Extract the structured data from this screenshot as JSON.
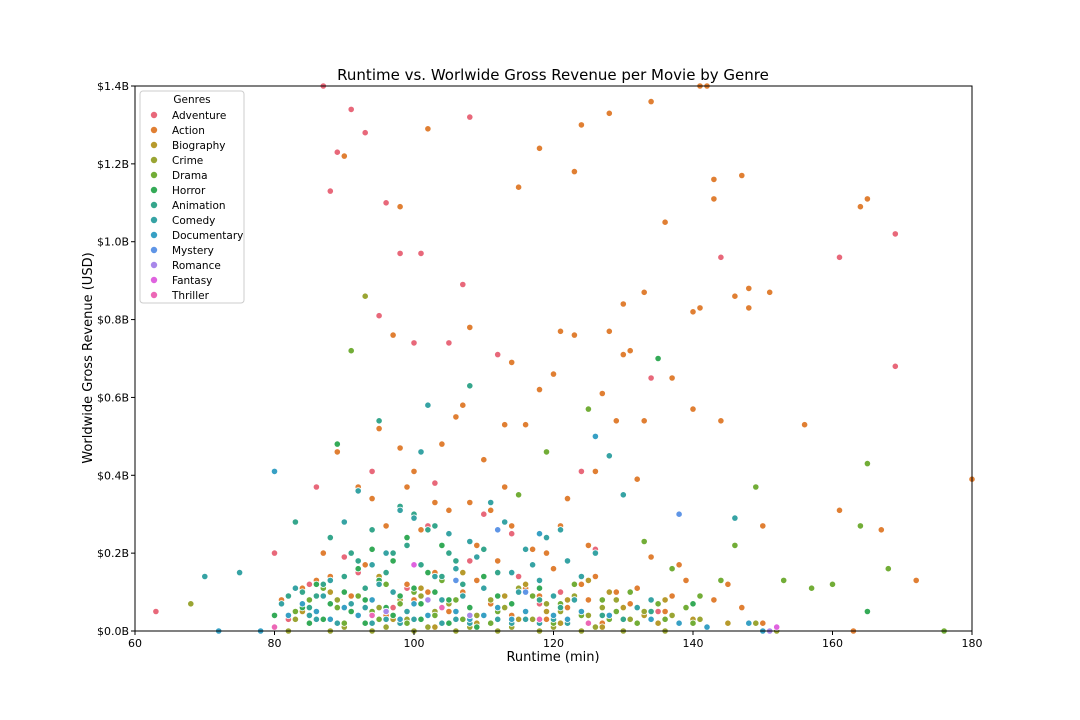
{
  "chart_data": {
    "type": "scatter",
    "title": "Runtime vs. Worlwide Gross Revenue per Movie by Genre",
    "xlabel": "Runtime (min)",
    "ylabel": "Worldwide Gross Revenue (USD)",
    "xlim": [
      60,
      180
    ],
    "ylim": [
      0,
      1.4
    ],
    "x_ticks": [
      60,
      80,
      100,
      120,
      140,
      160,
      180
    ],
    "y_ticks": [
      "$0.0B",
      "$0.2B",
      "$0.4B",
      "$0.6B",
      "$0.8B",
      "$1.0B",
      "$1.2B",
      "$1.4B"
    ],
    "grid": false,
    "legend": {
      "title": "Genres",
      "position": "top-left"
    },
    "series": [
      {
        "name": "Adventure",
        "color": "#e8687a",
        "x": [
          63,
          80,
          86,
          87,
          88,
          89,
          91,
          93,
          94,
          95,
          96,
          98,
          100,
          101,
          102,
          103,
          105,
          106,
          107,
          108,
          110,
          112,
          114,
          119,
          124,
          126,
          134,
          144,
          161,
          169,
          169,
          82,
          85,
          90,
          92,
          97,
          99,
          104,
          108,
          111,
          115,
          118,
          121,
          128,
          135
        ],
        "y": [
          0.05,
          0.2,
          0.37,
          1.4,
          1.13,
          1.23,
          1.34,
          1.28,
          0.41,
          0.81,
          1.1,
          0.97,
          0.74,
          0.97,
          0.27,
          0.38,
          0.74,
          0.55,
          0.89,
          1.32,
          0.3,
          0.71,
          0.25,
          0.24,
          0.41,
          0.21,
          0.65,
          0.96,
          0.96,
          0.68,
          1.02,
          0.03,
          0.12,
          0.19,
          0.15,
          0.06,
          0.11,
          0.08,
          0.18,
          0.02,
          0.14,
          0.07,
          0.1,
          0.03,
          0.05
        ]
      },
      {
        "name": "Action",
        "color": "#e07f33",
        "x": [
          81,
          84,
          86,
          87,
          89,
          90,
          92,
          93,
          94,
          95,
          96,
          97,
          98,
          98,
          99,
          100,
          101,
          102,
          102,
          103,
          104,
          105,
          106,
          107,
          108,
          108,
          109,
          110,
          111,
          112,
          113,
          113,
          114,
          114,
          115,
          116,
          117,
          118,
          118,
          119,
          120,
          121,
          121,
          122,
          123,
          123,
          124,
          125,
          126,
          127,
          128,
          128,
          129,
          130,
          130,
          131,
          132,
          133,
          133,
          134,
          136,
          137,
          138,
          140,
          140,
          141,
          141,
          142,
          143,
          143,
          144,
          146,
          147,
          148,
          148,
          150,
          151,
          156,
          161,
          164,
          165,
          167,
          172,
          180,
          85,
          88,
          91,
          93,
          96,
          99,
          100,
          103,
          105,
          107,
          109,
          111,
          112,
          114,
          116,
          118,
          119,
          120,
          122,
          124,
          125,
          126,
          127,
          129,
          131,
          132,
          134,
          136,
          137,
          139,
          141,
          143,
          145,
          147,
          150,
          163
        ],
        "y": [
          0.08,
          0.11,
          0.13,
          0.2,
          0.46,
          1.22,
          0.37,
          0.06,
          0.34,
          0.52,
          0.27,
          0.76,
          1.09,
          0.47,
          0.37,
          0.41,
          0.26,
          1.29,
          0.1,
          0.33,
          0.48,
          0.31,
          0.55,
          0.58,
          0.78,
          0.33,
          0.22,
          0.44,
          0.31,
          0.26,
          0.53,
          0.37,
          0.69,
          0.27,
          1.14,
          0.53,
          0.21,
          0.62,
          1.24,
          0.2,
          0.66,
          0.77,
          0.27,
          0.34,
          0.76,
          1.18,
          1.3,
          0.22,
          0.41,
          0.61,
          1.33,
          0.77,
          0.54,
          0.84,
          0.71,
          0.72,
          0.39,
          0.87,
          0.54,
          1.36,
          1.05,
          0.65,
          0.17,
          0.82,
          0.57,
          1.4,
          0.83,
          1.4,
          1.16,
          1.11,
          0.54,
          0.86,
          1.17,
          0.88,
          0.83,
          0.27,
          0.87,
          0.53,
          0.31,
          1.09,
          1.11,
          0.26,
          0.13,
          0.39,
          0.06,
          0.14,
          0.09,
          0.17,
          0.04,
          0.12,
          0.08,
          0.15,
          0.05,
          0.1,
          0.13,
          0.07,
          0.18,
          0.04,
          0.11,
          0.09,
          0.03,
          0.16,
          0.06,
          0.12,
          0.08,
          0.14,
          0.02,
          0.1,
          0.07,
          0.11,
          0.19,
          0.05,
          0.09,
          0.13,
          0.03,
          0.08,
          0.12,
          0.06,
          0.02,
          0.0
        ]
      },
      {
        "name": "Biography",
        "color": "#b79a2c",
        "x": [
          84,
          88,
          91,
          95,
          98,
          101,
          104,
          107,
          110,
          113,
          116,
          119,
          122,
          125,
          128,
          130,
          133,
          136,
          140,
          145,
          93,
          97,
          103,
          109,
          115,
          121,
          127,
          135
        ],
        "y": [
          0.05,
          0.1,
          0.07,
          0.14,
          0.08,
          0.11,
          0.06,
          0.15,
          0.04,
          0.09,
          0.12,
          0.05,
          0.08,
          0.13,
          0.1,
          0.06,
          0.04,
          0.08,
          0.03,
          0.02,
          0.02,
          0.03,
          0.01,
          0.02,
          0.03,
          0.02,
          0.01,
          0.02
        ]
      },
      {
        "name": "Crime",
        "color": "#9aa533",
        "x": [
          68,
          83,
          86,
          89,
          92,
          93,
          95,
          97,
          99,
          101,
          103,
          105,
          107,
          109,
          111,
          113,
          115,
          117,
          119,
          121,
          123,
          125,
          127,
          129,
          131,
          133,
          135,
          137,
          139,
          141,
          149,
          152,
          82,
          88,
          94,
          100,
          106,
          112,
          118,
          124,
          130,
          136,
          90,
          96,
          102,
          108,
          114,
          120,
          126
        ],
        "y": [
          0.07,
          0.03,
          0.05,
          0.08,
          0.04,
          0.86,
          0.06,
          0.1,
          0.03,
          0.09,
          0.05,
          0.07,
          0.12,
          0.04,
          0.08,
          0.06,
          0.11,
          0.03,
          0.07,
          0.05,
          0.09,
          0.04,
          0.06,
          0.08,
          0.03,
          0.05,
          0.07,
          0.04,
          0.06,
          0.03,
          0.02,
          0.0,
          0.0,
          0.0,
          0.0,
          0.0,
          0.0,
          0.0,
          0.0,
          0.0,
          0.0,
          0.0,
          0.01,
          0.01,
          0.01,
          0.01,
          0.01,
          0.01,
          0.01
        ]
      },
      {
        "name": "Drama",
        "color": "#72ad37",
        "x": [
          83,
          85,
          87,
          89,
          91,
          92,
          94,
          96,
          98,
          100,
          102,
          104,
          106,
          108,
          110,
          112,
          115,
          117,
          119,
          121,
          123,
          125,
          127,
          129,
          131,
          133,
          135,
          137,
          139,
          141,
          144,
          146,
          149,
          153,
          157,
          160,
          164,
          165,
          168,
          176,
          90,
          95,
          99,
          103,
          107,
          111,
          116,
          120,
          124,
          128,
          132,
          136,
          140,
          150
        ],
        "y": [
          0.05,
          0.08,
          0.11,
          0.06,
          0.72,
          0.09,
          0.05,
          0.12,
          0.07,
          0.1,
          0.04,
          0.13,
          0.08,
          0.06,
          0.11,
          0.05,
          0.35,
          0.09,
          0.46,
          0.07,
          0.12,
          0.57,
          0.08,
          0.05,
          0.1,
          0.23,
          0.07,
          0.16,
          0.06,
          0.09,
          0.13,
          0.22,
          0.37,
          0.13,
          0.11,
          0.12,
          0.27,
          0.43,
          0.16,
          0.0,
          0.02,
          0.03,
          0.02,
          0.04,
          0.03,
          0.02,
          0.03,
          0.02,
          0.04,
          0.03,
          0.02,
          0.03,
          0.02,
          0.0
        ]
      },
      {
        "name": "Horror",
        "color": "#34aa57",
        "x": [
          80,
          82,
          84,
          86,
          88,
          89,
          90,
          91,
          92,
          93,
          94,
          95,
          96,
          97,
          98,
          99,
          100,
          101,
          102,
          103,
          104,
          105,
          106,
          108,
          110,
          112,
          114,
          116,
          118,
          135,
          140,
          165,
          85,
          87,
          93,
          97,
          101,
          105,
          109
        ],
        "y": [
          0.04,
          0.09,
          0.06,
          0.12,
          0.07,
          0.48,
          0.1,
          0.05,
          0.16,
          0.08,
          0.21,
          0.13,
          0.06,
          0.18,
          0.09,
          0.24,
          0.11,
          0.07,
          0.15,
          0.1,
          0.22,
          0.08,
          0.13,
          0.06,
          0.14,
          0.09,
          0.07,
          0.05,
          0.11,
          0.7,
          0.07,
          0.05,
          0.02,
          0.03,
          0.02,
          0.04,
          0.03,
          0.02,
          0.01
        ]
      },
      {
        "name": "Animation",
        "color": "#35a68c",
        "x": [
          82,
          83,
          84,
          85,
          86,
          87,
          88,
          90,
          91,
          92,
          93,
          94,
          95,
          96,
          97,
          98,
          99,
          100,
          101,
          102,
          103,
          104,
          105,
          106,
          107,
          108,
          110,
          112,
          115,
          118,
          121,
          124,
          127,
          130,
          134
        ],
        "y": [
          0.09,
          0.28,
          0.1,
          0.06,
          0.09,
          0.12,
          0.24,
          0.14,
          0.2,
          0.18,
          0.11,
          0.26,
          0.54,
          0.15,
          0.2,
          0.32,
          0.22,
          0.3,
          0.17,
          0.26,
          0.27,
          0.14,
          0.2,
          0.18,
          0.12,
          0.63,
          0.21,
          0.15,
          0.1,
          0.08,
          0.06,
          0.05,
          0.04,
          0.03,
          0.05
        ]
      },
      {
        "name": "Comedy",
        "color": "#36a3a4",
        "x": [
          70,
          75,
          81,
          83,
          85,
          87,
          88,
          90,
          91,
          92,
          93,
          94,
          95,
          96,
          97,
          98,
          99,
          100,
          101,
          102,
          103,
          104,
          105,
          106,
          107,
          108,
          109,
          110,
          111,
          112,
          113,
          114,
          115,
          116,
          117,
          118,
          119,
          120,
          121,
          122,
          123,
          124,
          126,
          128,
          130,
          132,
          134,
          146,
          148,
          86,
          89,
          92,
          94,
          96,
          98,
          100,
          102,
          104,
          106,
          108,
          110,
          112,
          114,
          116,
          118,
          120,
          122
        ],
        "y": [
          0.14,
          0.15,
          0.07,
          0.11,
          0.04,
          0.09,
          0.13,
          0.28,
          0.07,
          0.36,
          0.06,
          0.17,
          0.12,
          0.2,
          0.1,
          0.31,
          0.05,
          0.29,
          0.46,
          0.58,
          0.14,
          0.08,
          0.25,
          0.16,
          0.09,
          0.23,
          0.19,
          0.11,
          0.33,
          0.06,
          0.28,
          0.15,
          0.1,
          0.21,
          0.17,
          0.13,
          0.24,
          0.09,
          0.26,
          0.18,
          0.08,
          0.14,
          0.2,
          0.45,
          0.35,
          0.06,
          0.08,
          0.29,
          0.02,
          0.03,
          0.02,
          0.04,
          0.02,
          0.03,
          0.02,
          0.03,
          0.04,
          0.02,
          0.03,
          0.02,
          0.04,
          0.03,
          0.02,
          0.03,
          0.02,
          0.03,
          0.02
        ]
      },
      {
        "name": "Documentary",
        "color": "#37a0c4",
        "x": [
          72,
          78,
          80,
          82,
          84,
          86,
          88,
          90,
          92,
          94,
          96,
          98,
          100,
          102,
          104,
          106,
          108,
          110,
          112,
          114,
          116,
          118,
          120,
          122,
          124,
          126,
          128,
          134,
          138,
          142,
          148,
          150
        ],
        "y": [
          0.0,
          0.0,
          0.41,
          0.04,
          0.07,
          0.05,
          0.03,
          0.06,
          0.04,
          0.08,
          0.05,
          0.03,
          0.07,
          0.04,
          0.06,
          0.05,
          0.03,
          0.04,
          0.06,
          0.03,
          0.05,
          0.25,
          0.04,
          0.03,
          0.05,
          0.5,
          0.04,
          0.03,
          0.02,
          0.01,
          0.02,
          0.0
        ]
      },
      {
        "name": "Mystery",
        "color": "#5f95e6",
        "x": [
          112,
          138,
          106,
          116
        ],
        "y": [
          0.26,
          0.3,
          0.13,
          0.1
        ]
      },
      {
        "name": "Romance",
        "color": "#a887ea",
        "x": [
          96,
          102,
          108,
          151
        ],
        "y": [
          0.05,
          0.08,
          0.04,
          0.0
        ]
      },
      {
        "name": "Fantasy",
        "color": "#df63df",
        "x": [
          100,
          152
        ],
        "y": [
          0.17,
          0.01
        ]
      },
      {
        "name": "Thriller",
        "color": "#ec67b6",
        "x": [
          80,
          94,
          104,
          118,
          125
        ],
        "y": [
          0.01,
          0.04,
          0.06,
          0.03,
          0.02
        ]
      }
    ]
  }
}
